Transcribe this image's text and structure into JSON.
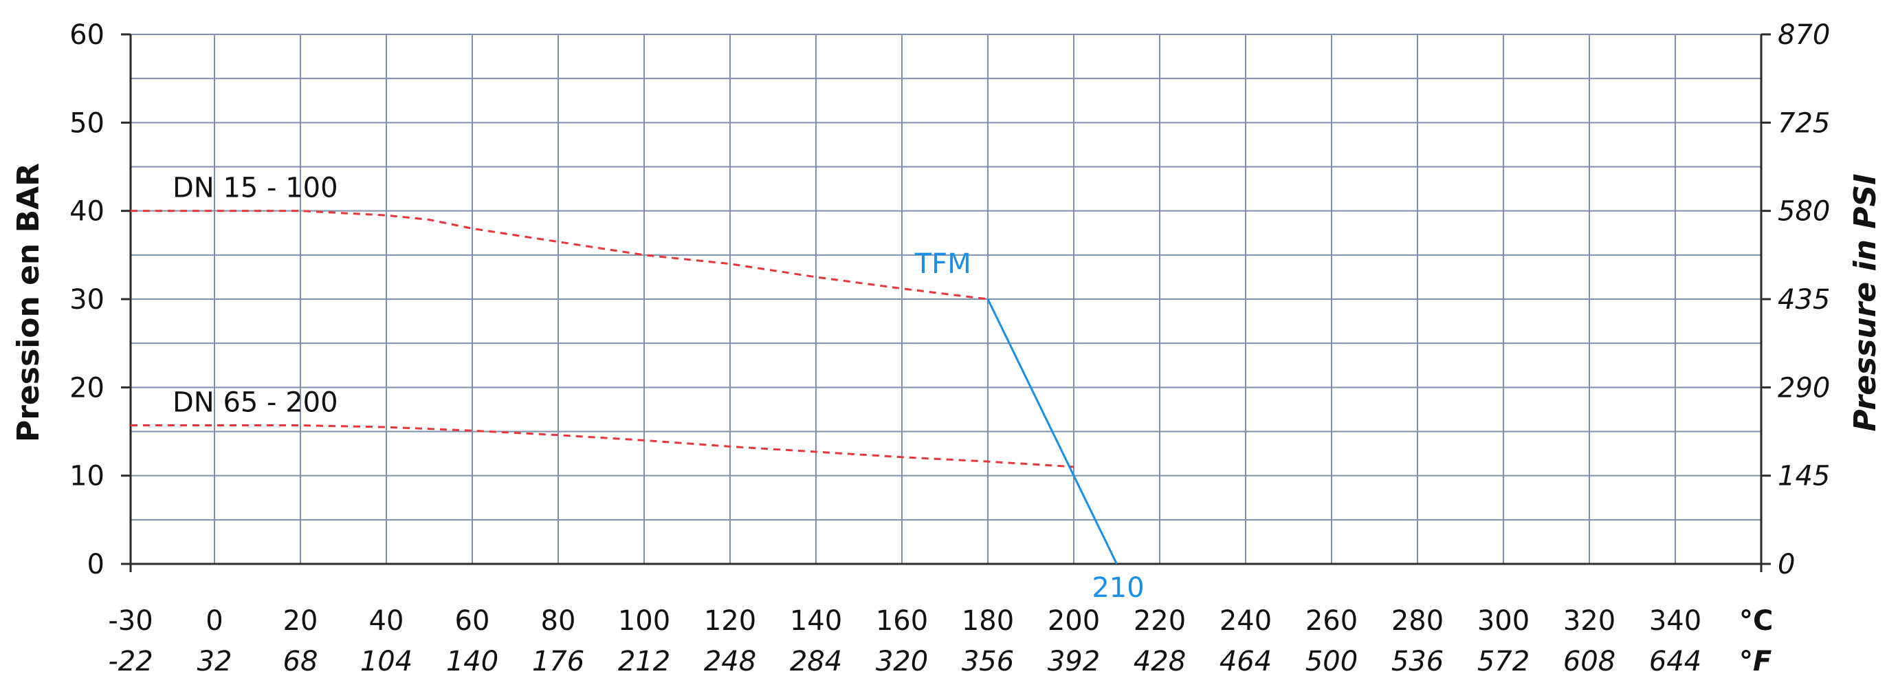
{
  "chart_data": {
    "type": "line",
    "ylabel_left": "Pression en BAR",
    "ylabel_right": "Pressure in PSI",
    "x_unit_c": "°C",
    "x_unit_f": "°F",
    "xlim_c": [
      -30,
      360
    ],
    "ylim_bar": [
      0,
      60
    ],
    "x_ticks_c": [
      "-30",
      "0",
      "20",
      "40",
      "60",
      "80",
      "100",
      "120",
      "140",
      "160",
      "180",
      "200",
      "220",
      "240",
      "260",
      "280",
      "300",
      "320",
      "340"
    ],
    "x_ticks_f": [
      "-22",
      "32",
      "68",
      "104",
      "140",
      "176",
      "212",
      "248",
      "284",
      "320",
      "356",
      "392",
      "428",
      "464",
      "500",
      "536",
      "572",
      "608",
      "644"
    ],
    "y_ticks_left": [
      "0",
      "10",
      "20",
      "30",
      "40",
      "50",
      "60"
    ],
    "y_ticks_right": [
      "0",
      "145",
      "290",
      "435",
      "580",
      "725",
      "870"
    ],
    "grid": true,
    "series": [
      {
        "name": "DN 15 - 100",
        "color": "#e8363a",
        "style": "dashed",
        "x": [
          -30,
          0,
          20,
          40,
          50,
          60,
          80,
          100,
          120,
          140,
          160,
          180
        ],
        "y": [
          40,
          40,
          40,
          39.5,
          39,
          38,
          36.5,
          35,
          34,
          32.5,
          31.2,
          30
        ]
      },
      {
        "name": "DN 65 - 200",
        "color": "#e8363a",
        "style": "dashed",
        "x": [
          -30,
          0,
          20,
          40,
          60,
          80,
          100,
          120,
          140,
          160,
          180,
          200
        ],
        "y": [
          15.7,
          15.7,
          15.7,
          15.5,
          15.1,
          14.6,
          14,
          13.3,
          12.7,
          12.1,
          11.6,
          11
        ]
      },
      {
        "name": "TFM",
        "color": "#1a8fe8",
        "style": "solid",
        "x": [
          180,
          210
        ],
        "y": [
          30,
          0
        ]
      }
    ],
    "annotations": [
      {
        "text": "210",
        "x": 210,
        "y": 0,
        "color": "#1a8fe8"
      }
    ]
  }
}
